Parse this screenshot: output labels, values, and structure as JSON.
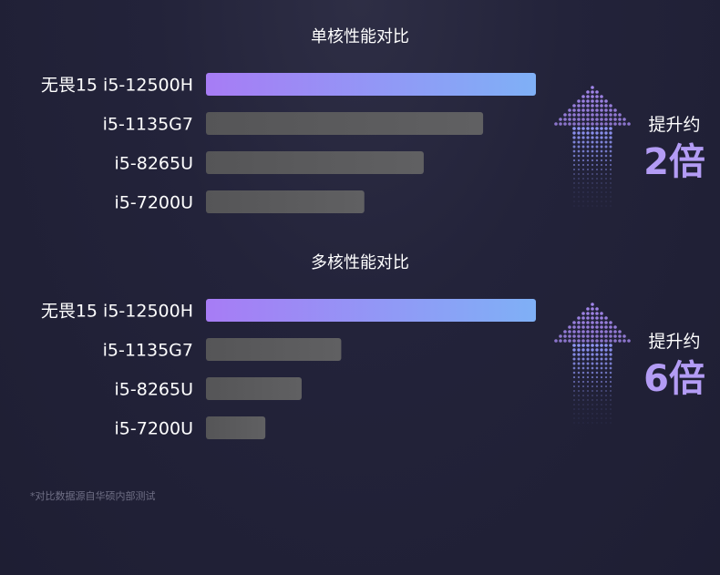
{
  "colors": {
    "background": "#1f1f34",
    "highlight_start": "#a77cf5",
    "highlight_end": "#7fb0f6",
    "bar_gray": "#5a5a5c",
    "accent_number": "#b39cf5"
  },
  "chart_data": [
    {
      "type": "bar",
      "orientation": "horizontal",
      "title": "单核性能对比",
      "categories": [
        "无畏15 i5-12500H",
        "i5-1135G7",
        "i5-8265U",
        "i5-7200U"
      ],
      "values": [
        100,
        84,
        66,
        48
      ],
      "xlim": [
        0,
        100
      ],
      "badge": {
        "label": "提升约",
        "value": "2倍"
      }
    },
    {
      "type": "bar",
      "orientation": "horizontal",
      "title": "多核性能对比",
      "categories": [
        "无畏15 i5-12500H",
        "i5-1135G7",
        "i5-8265U",
        "i5-7200U"
      ],
      "values": [
        100,
        41,
        29,
        18
      ],
      "xlim": [
        0,
        100
      ],
      "badge": {
        "label": "提升约",
        "value": "6倍"
      }
    }
  ],
  "footnote": "*对比数据源自华硕内部测试",
  "icons": [
    "up-arrow-dotted-icon"
  ]
}
